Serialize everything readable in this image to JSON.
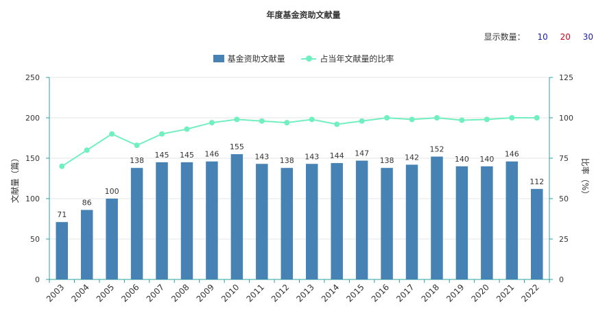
{
  "title": "年度基金资助文献量",
  "display_count": {
    "label": "显示数量：",
    "options": [
      {
        "label": "10",
        "color": "#1a1aa6"
      },
      {
        "label": "20",
        "color": "#d0021b"
      },
      {
        "label": "30",
        "color": "#1a1aa6"
      }
    ]
  },
  "colors": {
    "bar": "#4682b4",
    "line": "#70f0c0",
    "axis": "#2aa0a0",
    "grid": "#e6e6e6"
  },
  "legend": [
    {
      "label": "基金资助文献量",
      "type": "bar"
    },
    {
      "label": "占当年文献量的比率",
      "type": "line"
    }
  ],
  "chart_data": {
    "type": "bar",
    "title": "年度基金资助文献量",
    "categories": [
      "2003",
      "2004",
      "2005",
      "2006",
      "2007",
      "2008",
      "2009",
      "2010",
      "2011",
      "2012",
      "2013",
      "2014",
      "2015",
      "2016",
      "2017",
      "2018",
      "2019",
      "2020",
      "2021",
      "2022"
    ],
    "series": [
      {
        "name": "基金资助文献量",
        "type": "bar",
        "values": [
          71,
          86,
          100,
          138,
          145,
          145,
          146,
          155,
          143,
          138,
          143,
          144,
          147,
          138,
          142,
          152,
          140,
          140,
          146,
          112
        ]
      },
      {
        "name": "占当年文献量的比率",
        "type": "line",
        "values": [
          70,
          80,
          90,
          83,
          90,
          93,
          97,
          99,
          98,
          97,
          99,
          96,
          98,
          100,
          99,
          100,
          98.5,
          99,
          100,
          100
        ]
      }
    ],
    "ylabel": "文献量（篇）",
    "y2label": "比率（%）",
    "ylim": [
      0,
      250
    ],
    "y2lim": [
      0,
      125
    ],
    "yticks": [
      0,
      50,
      100,
      150,
      200,
      250
    ],
    "y2ticks": [
      0,
      25,
      50,
      75,
      100,
      125
    ],
    "grid": true,
    "legend_position": "top-center"
  }
}
